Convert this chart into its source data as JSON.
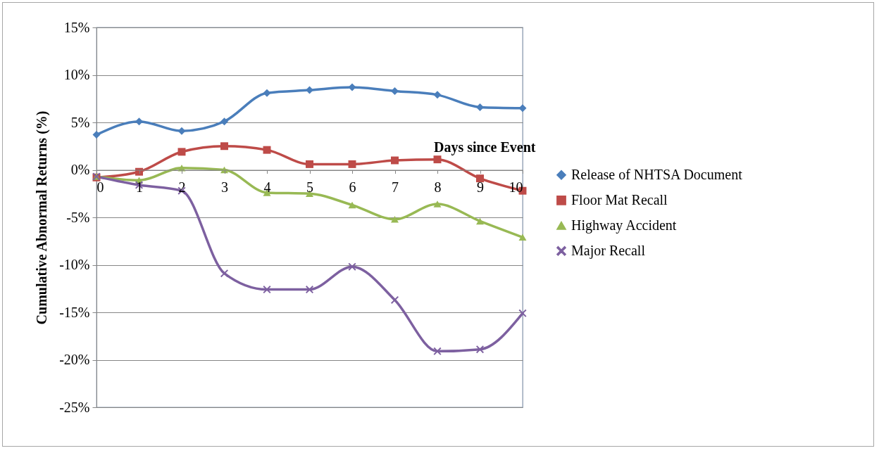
{
  "chart_data": {
    "type": "line",
    "xlabel": "Days since Event",
    "ylabel": "Cumulative Abnormal Returns (%)",
    "x": [
      0,
      1,
      2,
      3,
      4,
      5,
      6,
      7,
      8,
      9,
      10
    ],
    "xlim": [
      0,
      10
    ],
    "xticks": [
      0,
      1,
      2,
      3,
      4,
      5,
      6,
      7,
      8,
      9,
      10
    ],
    "ylim": [
      -25,
      15
    ],
    "yticks": [
      {
        "value": -25,
        "label": "-25%"
      },
      {
        "value": -20,
        "label": "-20%"
      },
      {
        "value": -15,
        "label": "-15%"
      },
      {
        "value": -10,
        "label": "-10%"
      },
      {
        "value": -5,
        "label": "-5%"
      },
      {
        "value": 0,
        "label": "0%"
      },
      {
        "value": 5,
        "label": "5%"
      },
      {
        "value": 10,
        "label": "10%"
      },
      {
        "value": 15,
        "label": "15%"
      }
    ],
    "grid": "y",
    "legend": "right",
    "series": [
      {
        "name": "Release of NHTSA  Document",
        "color": "#4a7ebb",
        "marker": "diamond",
        "values": [
          3.7,
          5.1,
          4.1,
          5.1,
          8.1,
          8.4,
          8.7,
          8.3,
          7.9,
          6.6,
          6.5
        ]
      },
      {
        "name": "Floor Mat Recall",
        "color": "#be4b48",
        "marker": "square",
        "values": [
          -0.8,
          -0.2,
          1.9,
          2.5,
          2.1,
          0.6,
          0.6,
          1.0,
          1.1,
          -0.9,
          -2.2
        ]
      },
      {
        "name": "Highway Accident",
        "color": "#98b954",
        "marker": "triangle",
        "values": [
          -0.7,
          -1.1,
          0.2,
          0,
          -2.4,
          -2.5,
          -3.7,
          -5.2,
          -3.6,
          -5.4,
          -7.1
        ]
      },
      {
        "name": "Major Recall",
        "color": "#7d60a0",
        "marker": "cross",
        "values": [
          -0.7,
          -1.6,
          -2.2,
          -10.9,
          -12.6,
          -12.6,
          -10.2,
          -13.7,
          -19.1,
          -18.9,
          -15.1
        ]
      }
    ]
  }
}
